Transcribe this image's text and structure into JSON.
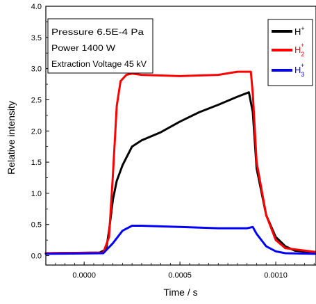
{
  "chart_data": {
    "type": "line",
    "xlabel": "Time / s",
    "ylabel": "Relative intensity",
    "xlim": [
      -0.0002,
      0.00121
    ],
    "ylim": [
      -0.15,
      4.0
    ],
    "x_ticks": [
      0.0,
      0.0005,
      0.001
    ],
    "x_tick_labels": [
      "0.0000",
      "0.0005",
      "0.0010"
    ],
    "y_ticks": [
      0.0,
      0.5,
      1.0,
      1.5,
      2.0,
      2.5,
      3.0,
      3.5,
      4.0
    ],
    "y_tick_labels": [
      "0.0",
      "0.5",
      "1.0",
      "1.5",
      "2.0",
      "2.5",
      "3.0",
      "3.5",
      "4.0"
    ],
    "annotation": [
      "Pressure 6.5E-4 Pa",
      "Power 1400 W",
      "Extraction Voltage 45 kV"
    ],
    "legend_position": "top-right",
    "series": [
      {
        "name": "H+",
        "label_base": "H",
        "label_sub": "",
        "label_sup": "+",
        "color": "#000000",
        "x": [
          -0.0002,
          8e-05,
          0.000115,
          0.00013,
          0.00015,
          0.00017,
          0.0002,
          0.00025,
          0.0003,
          0.0004,
          0.0005,
          0.0006,
          0.0007,
          0.0008,
          0.00086,
          0.00088,
          0.0009,
          0.00095,
          0.001,
          0.00105,
          0.0011,
          0.00121
        ],
        "y": [
          0.04,
          0.05,
          0.1,
          0.4,
          0.9,
          1.2,
          1.45,
          1.75,
          1.85,
          1.98,
          2.15,
          2.3,
          2.42,
          2.55,
          2.62,
          2.3,
          1.4,
          0.65,
          0.3,
          0.15,
          0.08,
          0.05
        ]
      },
      {
        "name": "H2+",
        "label_base": "H",
        "label_sub": "2",
        "label_sup": "+",
        "color": "#ff0000",
        "x": [
          -0.0002,
          0.0001,
          0.00013,
          0.00015,
          0.00017,
          0.00019,
          0.00022,
          0.00025,
          0.0003,
          0.0005,
          0.0007,
          0.0008,
          0.00087,
          0.00088,
          0.0009,
          0.00095,
          0.001,
          0.00105,
          0.00121
        ],
        "y": [
          0.04,
          0.05,
          0.3,
          1.3,
          2.4,
          2.8,
          2.9,
          2.92,
          2.9,
          2.88,
          2.9,
          2.95,
          2.95,
          2.6,
          1.5,
          0.65,
          0.25,
          0.12,
          0.06
        ]
      },
      {
        "name": "H3+",
        "label_base": "H",
        "label_sub": "3",
        "label_sup": "+",
        "color": "#0000ff",
        "x": [
          -0.0002,
          0.0001,
          0.00015,
          0.0002,
          0.00025,
          0.0003,
          0.0005,
          0.0007,
          0.00085,
          0.00088,
          0.0009,
          0.00095,
          0.001,
          0.00105,
          0.00121
        ],
        "y": [
          0.03,
          0.04,
          0.2,
          0.4,
          0.48,
          0.48,
          0.46,
          0.44,
          0.44,
          0.46,
          0.35,
          0.15,
          0.07,
          0.04,
          0.03
        ]
      }
    ]
  }
}
